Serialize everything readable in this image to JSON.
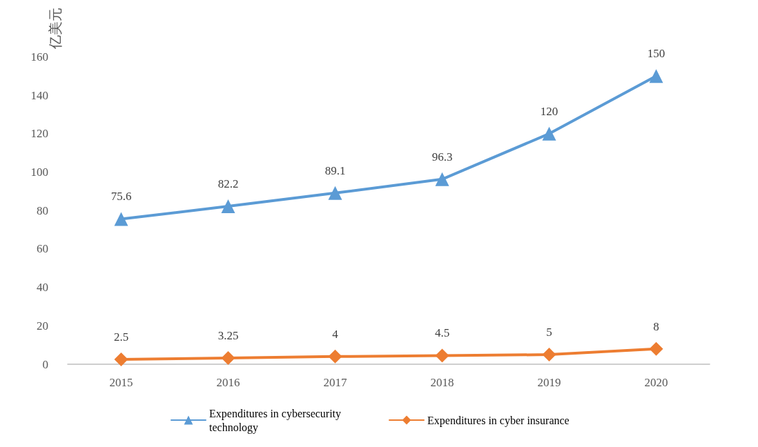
{
  "chart_data": {
    "type": "line",
    "ylabel": "亿美元",
    "categories": [
      "2015",
      "2016",
      "2017",
      "2018",
      "2019",
      "2020"
    ],
    "series": [
      {
        "name": "Expenditures in cybersecurity technology",
        "color": "#5b9bd5",
        "marker": "triangle",
        "values": [
          75.6,
          82.2,
          89.1,
          96.3,
          120,
          150
        ]
      },
      {
        "name": "Expenditures in cyber insurance",
        "color": "#ed7d31",
        "marker": "diamond",
        "values": [
          2.5,
          3.25,
          4,
          4.5,
          5,
          8
        ]
      }
    ],
    "ylim": [
      0,
      160
    ],
    "yticks": [
      0,
      20,
      40,
      60,
      80,
      100,
      120,
      140,
      160
    ],
    "grid": false,
    "legend": "bottom",
    "data_labels": true,
    "line_style": "solid"
  }
}
